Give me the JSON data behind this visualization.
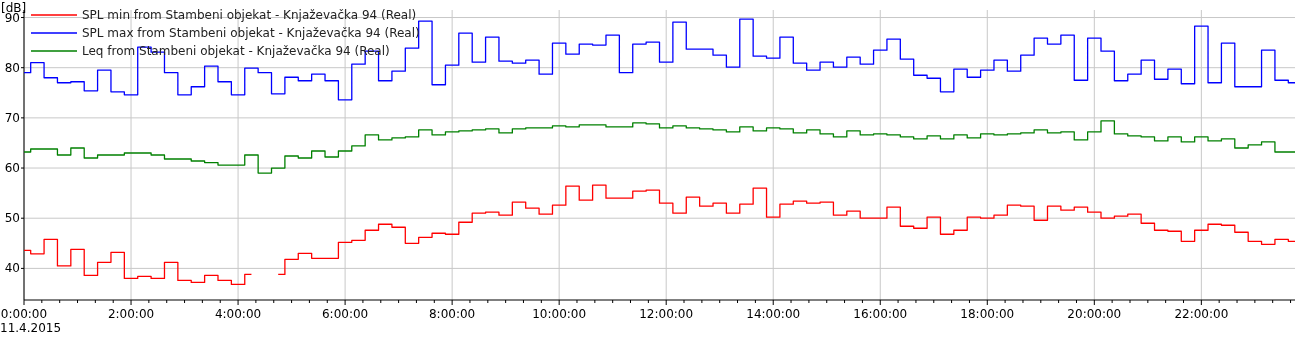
{
  "chart_data": {
    "type": "step",
    "ylabel": "[dB]",
    "annotations": [
      "11.4.2015"
    ],
    "x": [
      0,
      0.25,
      0.5,
      0.75,
      1,
      1.25,
      1.5,
      1.75,
      2,
      2.25,
      2.5,
      2.75,
      3,
      3.25,
      3.5,
      3.75,
      4,
      4.25,
      4.5,
      4.75,
      5,
      5.25,
      5.5,
      5.75,
      6,
      6.25,
      6.5,
      6.75,
      7,
      7.25,
      7.5,
      7.75,
      8,
      8.25,
      8.5,
      8.75,
      9,
      9.25,
      9.5,
      9.75,
      10,
      10.25,
      10.5,
      10.75,
      11,
      11.25,
      11.5,
      11.75,
      12,
      12.25,
      12.5,
      12.75,
      13,
      13.25,
      13.5,
      13.75,
      14,
      14.25,
      14.5,
      14.75,
      15,
      15.25,
      15.5,
      15.75,
      16,
      16.25,
      16.5,
      16.75,
      17,
      17.25,
      17.5,
      17.75,
      18,
      18.25,
      18.5,
      18.75,
      19,
      19.25,
      19.5,
      19.75,
      20,
      20.25,
      20.5,
      20.75,
      21,
      21.25,
      21.5,
      21.75,
      22,
      22.25,
      22.5,
      22.75,
      23,
      23.25,
      23.5,
      23.75
    ],
    "series": [
      {
        "name": "SPL min from Stambeni objekat - Knjaževačka 94 (Real)",
        "color": "#ff0000",
        "values": [
          43.6,
          42.9,
          45.8,
          40.5,
          43.8,
          38.6,
          41.2,
          43.2,
          38.0,
          38.4,
          38.0,
          41.2,
          37.6,
          37.2,
          38.6,
          37.6,
          36.8,
          38.8,
          null,
          38.8,
          41.8,
          43.0,
          42.0,
          42.0,
          45.2,
          45.6,
          47.6,
          48.8,
          48.2,
          45.0,
          46.2,
          47.0,
          46.8,
          49.2,
          51.0,
          51.2,
          50.6,
          53.2,
          52.0,
          50.8,
          52.6,
          56.4,
          53.6,
          56.6,
          54.0,
          54.0,
          55.4,
          55.6,
          53.0,
          51.0,
          54.2,
          52.4,
          53.0,
          51.0,
          52.8,
          56.0,
          50.2,
          52.8,
          53.4,
          53.0,
          53.2,
          50.6,
          51.4,
          50.0,
          50.0,
          52.2,
          48.4,
          48.0,
          50.2,
          46.8,
          47.6,
          50.2,
          50.0,
          50.6,
          52.6,
          52.4,
          49.6,
          52.4,
          51.6,
          52.2,
          51.2,
          50.0,
          50.4,
          50.8,
          49.0,
          47.6,
          47.4,
          45.4,
          47.6,
          48.8,
          48.6,
          47.2,
          45.4,
          44.8,
          45.8,
          45.4
        ]
      },
      {
        "name": "SPL max from Stambeni objekat - Knjaževačka 94 (Real)",
        "color": "#0000ff",
        "values": [
          79.0,
          81.0,
          78.0,
          77.0,
          77.2,
          75.4,
          79.5,
          75.2,
          74.6,
          84.1,
          83.1,
          79.0,
          74.6,
          76.2,
          80.3,
          77.2,
          74.6,
          79.9,
          79.0,
          74.8,
          78.1,
          77.4,
          78.7,
          77.4,
          73.6,
          80.7,
          83.3,
          77.4,
          79.3,
          83.9,
          89.3,
          76.6,
          80.5,
          86.9,
          81.1,
          86.1,
          81.3,
          80.9,
          81.5,
          78.7,
          84.9,
          82.7,
          84.7,
          84.5,
          86.5,
          79.0,
          84.7,
          85.1,
          81.1,
          89.1,
          83.7,
          83.7,
          82.5,
          80.1,
          89.7,
          82.3,
          81.9,
          86.1,
          80.9,
          79.5,
          81.1,
          80.1,
          82.1,
          80.7,
          83.5,
          85.7,
          81.7,
          78.5,
          77.9,
          75.2,
          79.7,
          78.1,
          79.5,
          81.5,
          79.3,
          82.5,
          85.9,
          84.7,
          86.5,
          77.5,
          85.9,
          83.3,
          77.4,
          78.7,
          81.5,
          77.7,
          79.7,
          76.8,
          88.3,
          77.0,
          84.9,
          76.2,
          76.2,
          83.5,
          77.5,
          77.0
        ]
      },
      {
        "name": "Leq from Stambeni objekat - Knjaževačka 94 (Real)",
        "color": "#008000",
        "values": [
          63.2,
          63.8,
          63.8,
          62.6,
          64.0,
          62.0,
          62.6,
          62.6,
          63.0,
          63.0,
          62.6,
          61.8,
          61.8,
          61.4,
          61.1,
          60.6,
          60.6,
          62.6,
          59.0,
          60.0,
          62.4,
          62.0,
          63.4,
          62.2,
          63.4,
          64.4,
          66.6,
          65.6,
          66.0,
          66.2,
          67.6,
          66.6,
          67.2,
          67.4,
          67.6,
          67.8,
          67.0,
          67.8,
          68.0,
          68.0,
          68.4,
          68.2,
          68.6,
          68.6,
          68.2,
          68.2,
          69.0,
          68.8,
          68.0,
          68.4,
          68.0,
          67.8,
          67.6,
          67.2,
          68.2,
          67.4,
          68.0,
          67.8,
          67.0,
          67.6,
          66.8,
          66.2,
          67.4,
          66.6,
          66.8,
          66.6,
          66.2,
          65.8,
          66.4,
          65.8,
          66.6,
          66.0,
          66.8,
          66.6,
          66.8,
          67.0,
          67.6,
          67.0,
          67.2,
          65.6,
          67.2,
          69.4,
          66.8,
          66.4,
          66.2,
          65.4,
          66.2,
          65.2,
          66.2,
          65.4,
          65.8,
          64.0,
          64.6,
          65.2,
          63.2,
          63.2
        ]
      }
    ],
    "xlim": [
      0,
      23.75
    ],
    "ylim": [
      33.7,
      91.5
    ],
    "yticks": [
      40,
      50,
      60,
      70,
      80,
      90
    ],
    "xticks": [
      {
        "value": 0,
        "label": "0:00:00"
      },
      {
        "value": 0.333,
        "label": null
      },
      {
        "value": 0.667,
        "label": null
      },
      {
        "value": 1,
        "label": null
      },
      {
        "value": 1.333,
        "label": null
      },
      {
        "value": 1.667,
        "label": null
      },
      {
        "value": 2,
        "label": "2:00:00"
      },
      {
        "value": 2.333,
        "label": null
      },
      {
        "value": 2.667,
        "label": null
      },
      {
        "value": 3,
        "label": null
      },
      {
        "value": 3.333,
        "label": null
      },
      {
        "value": 3.667,
        "label": null
      },
      {
        "value": 4,
        "label": "4:00:00"
      },
      {
        "value": 4.333,
        "label": null
      },
      {
        "value": 4.667,
        "label": null
      },
      {
        "value": 5,
        "label": null
      },
      {
        "value": 5.333,
        "label": null
      },
      {
        "value": 5.667,
        "label": null
      },
      {
        "value": 6,
        "label": "6:00:00"
      },
      {
        "value": 6.333,
        "label": null
      },
      {
        "value": 6.667,
        "label": null
      },
      {
        "value": 7,
        "label": null
      },
      {
        "value": 7.333,
        "label": null
      },
      {
        "value": 7.667,
        "label": null
      },
      {
        "value": 8,
        "label": "8:00:00"
      },
      {
        "value": 8.333,
        "label": null
      },
      {
        "value": 8.667,
        "label": null
      },
      {
        "value": 9,
        "label": null
      },
      {
        "value": 9.333,
        "label": null
      },
      {
        "value": 9.667,
        "label": null
      },
      {
        "value": 10,
        "label": "10:00:00"
      },
      {
        "value": 10.333,
        "label": null
      },
      {
        "value": 10.667,
        "label": null
      },
      {
        "value": 11,
        "label": null
      },
      {
        "value": 11.333,
        "label": null
      },
      {
        "value": 11.667,
        "label": null
      },
      {
        "value": 12,
        "label": "12:00:00"
      },
      {
        "value": 12.333,
        "label": null
      },
      {
        "value": 12.667,
        "label": null
      },
      {
        "value": 13,
        "label": null
      },
      {
        "value": 13.333,
        "label": null
      },
      {
        "value": 13.667,
        "label": null
      },
      {
        "value": 14,
        "label": "14:00:00"
      },
      {
        "value": 14.333,
        "label": null
      },
      {
        "value": 14.667,
        "label": null
      },
      {
        "value": 15,
        "label": null
      },
      {
        "value": 15.333,
        "label": null
      },
      {
        "value": 15.667,
        "label": null
      },
      {
        "value": 16,
        "label": "16:00:00"
      },
      {
        "value": 16.333,
        "label": null
      },
      {
        "value": 16.667,
        "label": null
      },
      {
        "value": 17,
        "label": null
      },
      {
        "value": 17.333,
        "label": null
      },
      {
        "value": 17.667,
        "label": null
      },
      {
        "value": 18,
        "label": "18:00:00"
      },
      {
        "value": 18.333,
        "label": null
      },
      {
        "value": 18.667,
        "label": null
      },
      {
        "value": 19,
        "label": null
      },
      {
        "value": 19.333,
        "label": null
      },
      {
        "value": 19.667,
        "label": null
      },
      {
        "value": 20,
        "label": "20:00:00"
      },
      {
        "value": 20.333,
        "label": null
      },
      {
        "value": 20.667,
        "label": null
      },
      {
        "value": 21,
        "label": null
      },
      {
        "value": 21.333,
        "label": null
      },
      {
        "value": 21.667,
        "label": null
      },
      {
        "value": 22,
        "label": "22:00:00"
      },
      {
        "value": 22.333,
        "label": null
      },
      {
        "value": 22.667,
        "label": null
      },
      {
        "value": 23,
        "label": null
      },
      {
        "value": 23.333,
        "label": null
      },
      {
        "value": 23.667,
        "label": null
      }
    ],
    "grid": true,
    "legend": "top left"
  }
}
